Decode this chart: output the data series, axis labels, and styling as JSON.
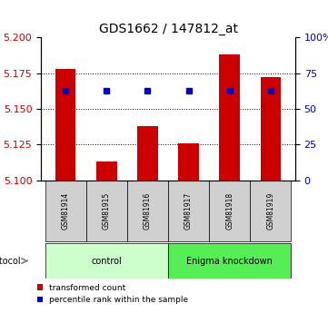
{
  "title": "GDS1662 / 147812_at",
  "samples": [
    "GSM81914",
    "GSM81915",
    "GSM81916",
    "GSM81917",
    "GSM81918",
    "GSM81919"
  ],
  "bar_values": [
    5.178,
    5.113,
    5.138,
    5.126,
    5.188,
    5.172
  ],
  "blue_dot_values": [
    5.163,
    5.163,
    5.163,
    5.163,
    5.163,
    5.163
  ],
  "bar_color": "#cc0000",
  "dot_color": "#0000cc",
  "baseline": 5.1,
  "ylim_left": [
    5.1,
    5.2
  ],
  "yticks_left": [
    5.1,
    5.125,
    5.15,
    5.175,
    5.2
  ],
  "yticks_right": [
    0,
    25,
    50,
    75,
    100
  ],
  "ytick_labels_right": [
    "0",
    "25",
    "50",
    "75",
    "100%"
  ],
  "groups": [
    {
      "label": "control",
      "start": 0,
      "end": 3,
      "color": "#ccffcc"
    },
    {
      "label": "Enigma knockdown",
      "start": 3,
      "end": 6,
      "color": "#55ee55"
    }
  ],
  "protocol_label": "protocol",
  "legend_items": [
    {
      "color": "#cc0000",
      "label": "transformed count"
    },
    {
      "color": "#0000cc",
      "label": "percentile rank within the sample"
    }
  ],
  "bar_width": 0.5,
  "tick_label_color_left": "#cc0000",
  "tick_label_color_right": "#0000cc",
  "plot_bg_color": "#ffffff",
  "grid_color": "black",
  "sample_box_color": "#d0d0d0"
}
